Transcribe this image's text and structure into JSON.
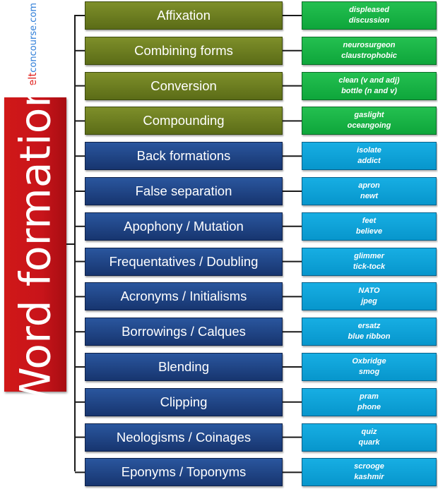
{
  "watermark": {
    "part1": "elt",
    "part2": "concourse.com"
  },
  "title": "Word formation",
  "colors": {
    "title_red": "#c8141a",
    "olive": "#6b7b1f",
    "navy": "#1f447f",
    "green": "#19b048",
    "cyan": "#0ea2d8"
  },
  "items": [
    {
      "label": "Affixation",
      "example1": "displeased",
      "example2": "discussion",
      "group": "olive"
    },
    {
      "label": "Combining forms",
      "example1": "neurosurgeon",
      "example2": "claustrophobic",
      "group": "olive"
    },
    {
      "label": "Conversion",
      "example1": "clean (v and adj)",
      "example2": "bottle (n and v)",
      "group": "olive"
    },
    {
      "label": "Compounding",
      "example1": "gaslight",
      "example2": "oceangoing",
      "group": "olive"
    },
    {
      "label": "Back formations",
      "example1": "isolate",
      "example2": "addict",
      "group": "blue"
    },
    {
      "label": "False separation",
      "example1": "apron",
      "example2": "newt",
      "group": "blue"
    },
    {
      "label": "Apophony / Mutation",
      "example1": "feet",
      "example2": "believe",
      "group": "blue"
    },
    {
      "label": "Frequentatives / Doubling",
      "example1": "glimmer",
      "example2": "tick-tock",
      "group": "blue"
    },
    {
      "label": "Acronyms / Initialisms",
      "example1": "NATO",
      "example2": "jpeg",
      "group": "blue"
    },
    {
      "label": "Borrowings / Calques",
      "example1": "ersatz",
      "example2": "blue ribbon",
      "group": "blue"
    },
    {
      "label": "Blending",
      "example1": "Oxbridge",
      "example2": "smog",
      "group": "blue"
    },
    {
      "label": "Clipping",
      "example1": "pram",
      "example2": "phone",
      "group": "blue"
    },
    {
      "label": "Neologisms / Coinages",
      "example1": "quiz",
      "example2": "quark",
      "group": "blue"
    },
    {
      "label": "Eponyms / Toponyms",
      "example1": "scrooge",
      "example2": "kashmir",
      "group": "blue"
    }
  ]
}
